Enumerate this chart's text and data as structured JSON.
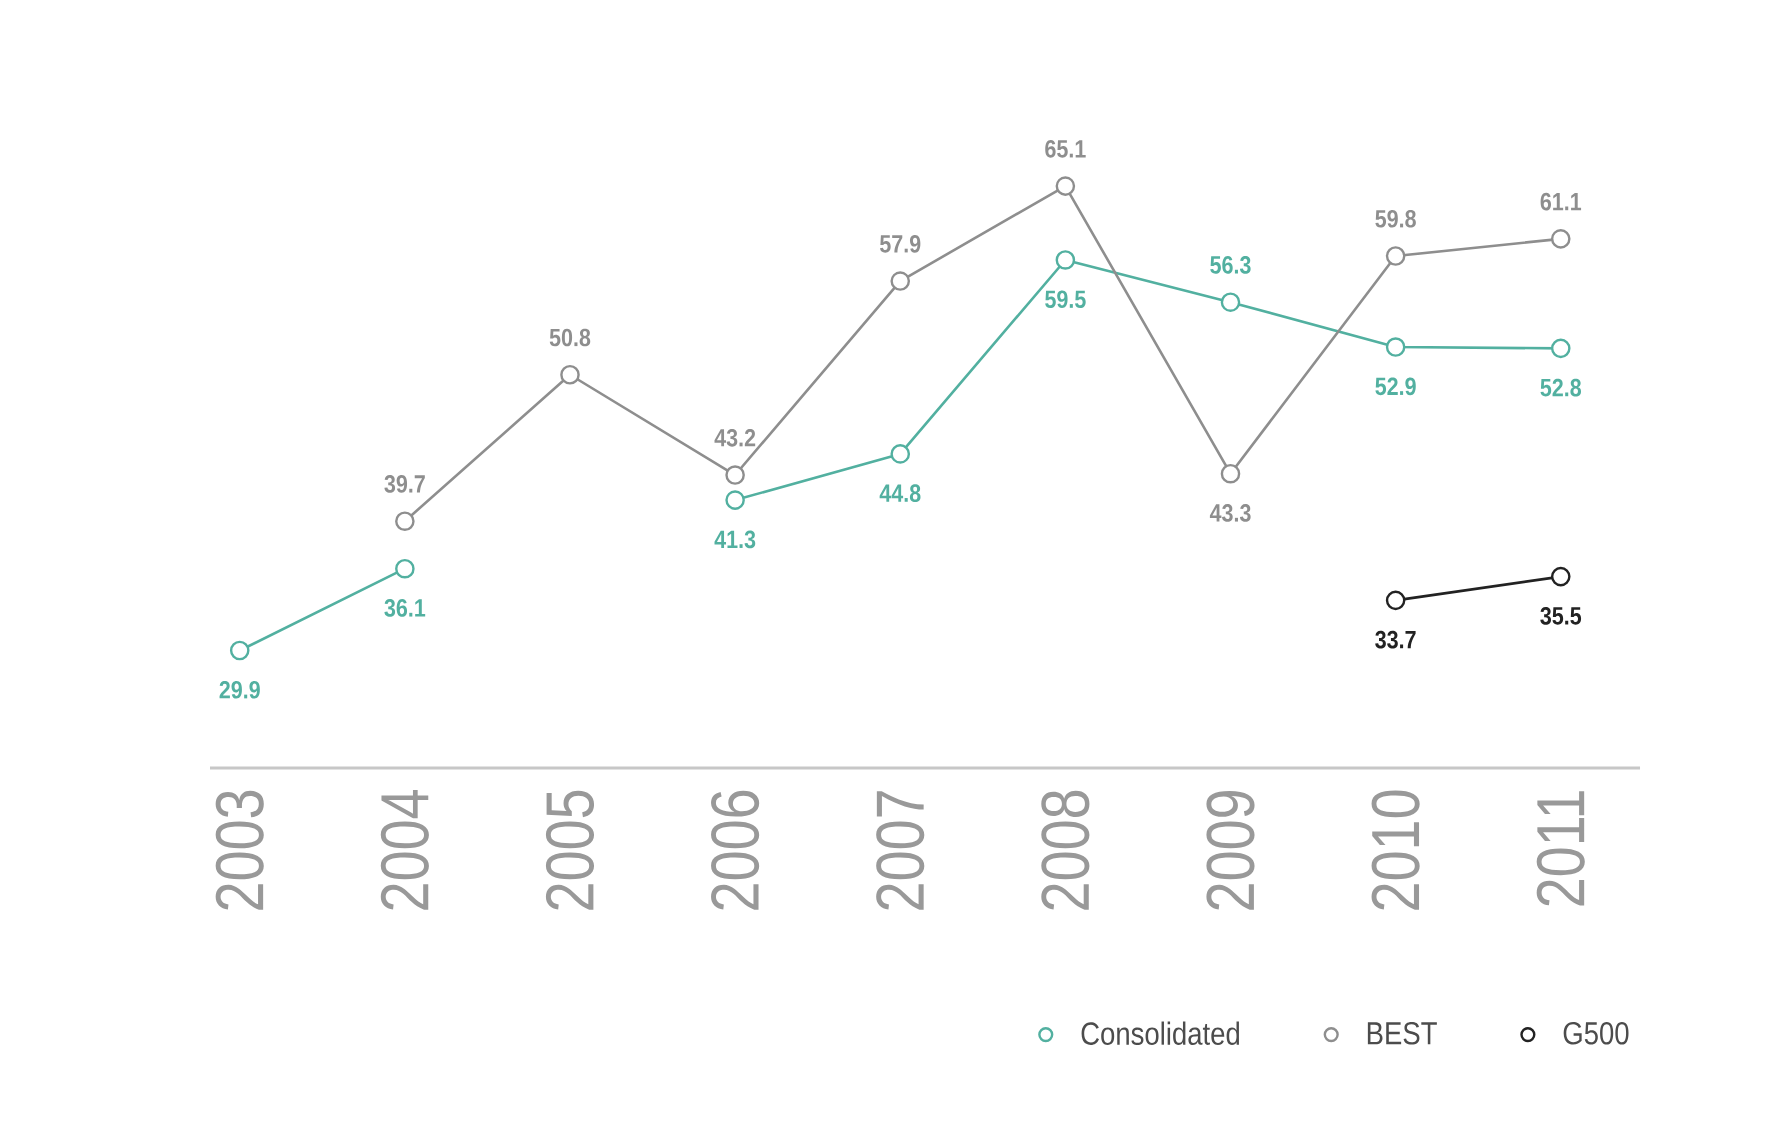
{
  "chart_data": {
    "type": "line",
    "categories": [
      "2003",
      "2004",
      "2005",
      "2006",
      "2007",
      "2008",
      "2009",
      "2010",
      "2011"
    ],
    "series": [
      {
        "name": "Consolidated",
        "color": "#52b0a0",
        "values": [
          29.9,
          36.1,
          null,
          41.3,
          44.8,
          59.5,
          56.3,
          52.9,
          52.8
        ]
      },
      {
        "name": "BEST",
        "color": "#8e8e8e",
        "values": [
          null,
          39.7,
          50.8,
          43.2,
          57.9,
          65.1,
          43.3,
          59.8,
          61.1
        ]
      },
      {
        "name": "G500",
        "color": "#222222",
        "values": [
          null,
          null,
          null,
          null,
          null,
          null,
          null,
          33.7,
          35.5
        ]
      }
    ],
    "data_labels": true,
    "legend": "bottom right",
    "marker": "circle",
    "line_style": "solid",
    "tick_labels": "x"
  }
}
